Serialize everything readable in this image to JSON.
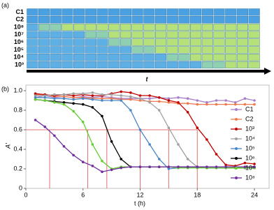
{
  "panel_a": {
    "label": "(a)",
    "rows": [
      "C1",
      "C2",
      "10⁸",
      "10⁷",
      "10⁶",
      "10⁵",
      "10⁴",
      "10³"
    ],
    "axis_label": "t"
  },
  "chart_data": {
    "type": "line",
    "panel_label": "(b)",
    "x_label": "t (h)",
    "y_label": "A'",
    "x": [
      1,
      2,
      3,
      4,
      5,
      6,
      7,
      8,
      9,
      10,
      11,
      12,
      13,
      14,
      15,
      16,
      17,
      18,
      19,
      20,
      21,
      22,
      23,
      24
    ],
    "xlim": [
      0,
      24
    ],
    "xticks": [
      0,
      6,
      12,
      18,
      24
    ],
    "ylim": [
      0,
      1
    ],
    "yticks": [
      0,
      0.2,
      0.4,
      0.6,
      0.8,
      {
        "value": 1,
        "label": "1.0"
      }
    ],
    "threshold": 0.6,
    "crossings": [
      2.5,
      6.5,
      8.5,
      12,
      15,
      18
    ],
    "reference_color": "#e07070",
    "legend": "right",
    "series": [
      {
        "name": "C1",
        "color": "#a67fc8",
        "values": [
          0.93,
          0.95,
          0.93,
          0.94,
          0.93,
          0.94,
          0.93,
          0.94,
          0.93,
          0.92,
          0.92,
          0.92,
          0.92,
          0.93,
          0.92,
          0.93,
          0.92,
          0.9,
          0.88,
          0.9,
          0.9,
          0.88,
          0.92,
          0.9
        ]
      },
      {
        "name": "C2",
        "color": "#f07a50",
        "values": [
          0.96,
          0.96,
          0.94,
          0.94,
          0.93,
          0.93,
          0.92,
          0.92,
          0.92,
          0.91,
          0.91,
          0.9,
          0.89,
          0.89,
          0.88,
          0.87,
          0.87,
          0.86,
          0.86,
          0.86,
          0.86,
          0.86,
          0.86,
          0.86
        ]
      },
      {
        "name": "10³",
        "color": "#c00000",
        "values": [
          0.97,
          0.96,
          0.95,
          0.96,
          0.95,
          0.96,
          0.95,
          0.95,
          0.97,
          0.99,
          0.98,
          0.95,
          0.95,
          0.93,
          0.9,
          0.88,
          0.78,
          0.62,
          0.5,
          0.35,
          0.24,
          0.23,
          0.26,
          0.25
        ]
      },
      {
        "name": "10⁴",
        "color": "#a0a0a0",
        "values": [
          0.95,
          0.95,
          0.96,
          0.96,
          0.97,
          0.97,
          0.98,
          0.96,
          0.96,
          0.95,
          0.94,
          0.92,
          0.88,
          0.8,
          0.62,
          0.45,
          0.3,
          0.22,
          0.22,
          0.22,
          0.22,
          0.22,
          0.22,
          0.22
        ]
      },
      {
        "name": "10⁵",
        "color": "#4a86c8",
        "values": [
          0.93,
          0.93,
          0.92,
          0.92,
          0.91,
          0.92,
          0.91,
          0.9,
          0.9,
          0.9,
          0.8,
          0.6,
          0.45,
          0.3,
          0.2,
          0.21,
          0.21,
          0.21,
          0.21,
          0.21,
          0.21,
          0.21,
          0.21,
          0.21
        ]
      },
      {
        "name": "10⁶",
        "color": "#000000",
        "values": [
          0.91,
          0.9,
          0.89,
          0.88,
          0.87,
          0.86,
          0.83,
          0.74,
          0.48,
          0.3,
          0.22,
          0.22,
          0.22,
          0.22,
          0.22,
          0.22,
          0.22,
          0.22,
          0.21,
          0.21,
          0.21,
          0.21,
          0.21,
          0.21
        ]
      },
      {
        "name": "10⁷",
        "color": "#66cc33",
        "values": [
          0.91,
          0.9,
          0.88,
          0.86,
          0.79,
          0.68,
          0.45,
          0.28,
          0.2,
          0.22,
          0.22,
          0.22,
          0.22,
          0.22,
          0.22,
          0.21,
          0.21,
          0.21,
          0.21,
          0.21,
          0.21,
          0.21,
          0.21,
          0.21
        ]
      },
      {
        "name": "10⁸",
        "color": "#7030a0",
        "values": [
          0.7,
          0.63,
          0.54,
          0.43,
          0.34,
          0.27,
          0.23,
          0.17,
          0.19,
          0.21,
          0.22,
          0.22,
          0.22,
          0.22,
          0.22,
          0.22,
          0.22,
          0.22,
          0.22,
          0.22,
          0.22,
          0.22,
          0.22,
          0.22
        ]
      }
    ]
  }
}
